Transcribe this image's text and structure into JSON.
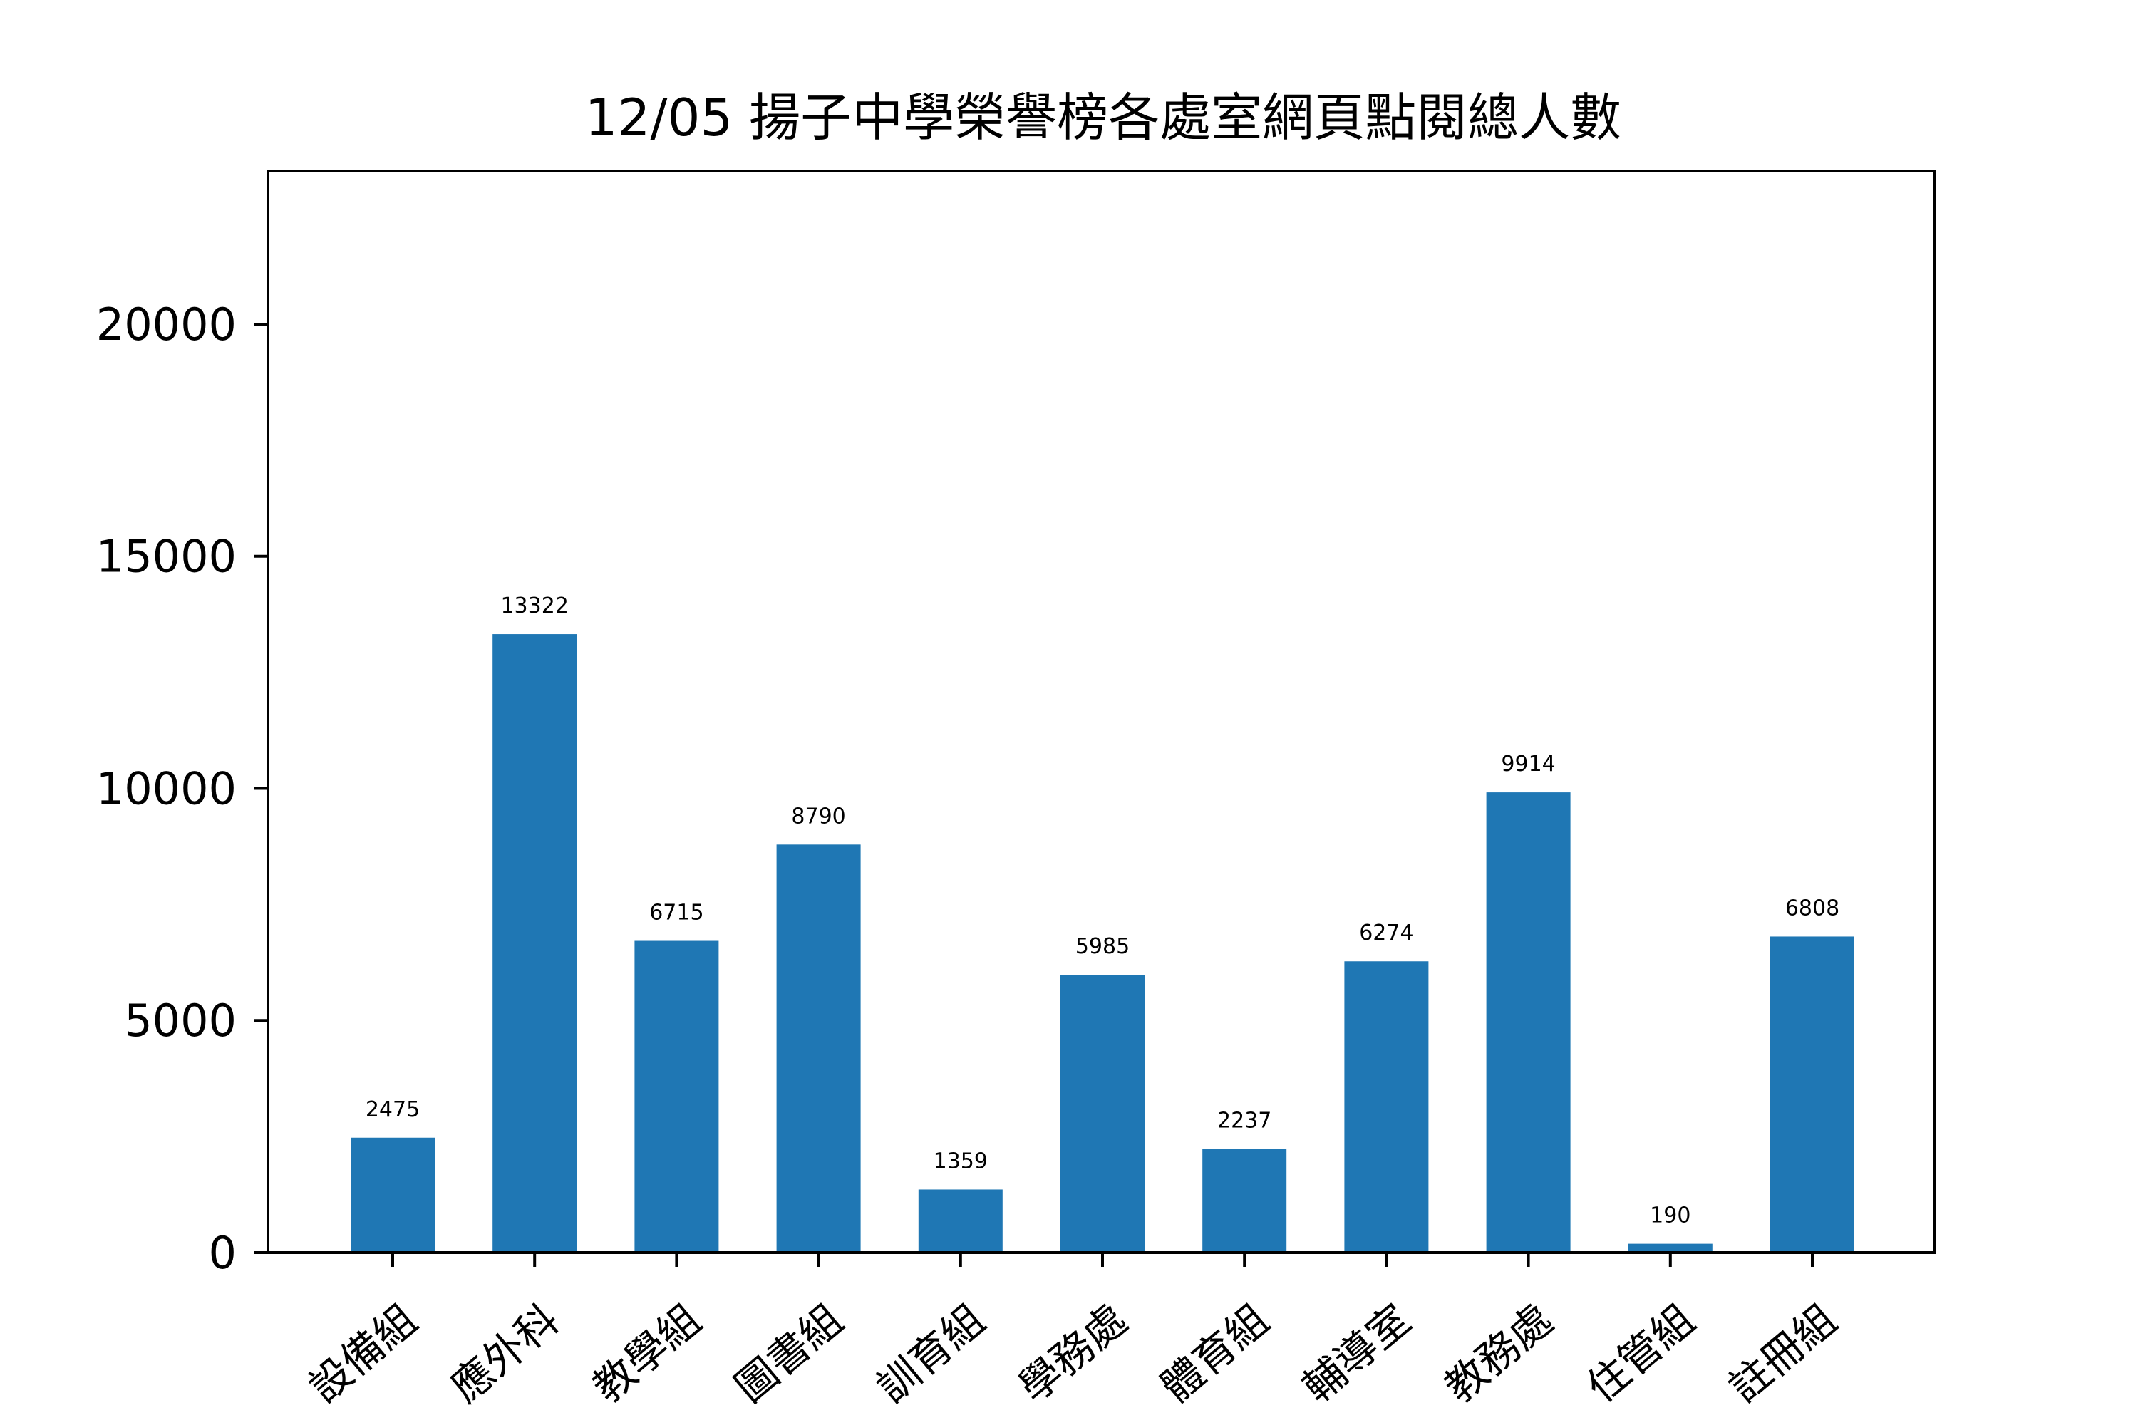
{
  "chart_data": {
    "type": "bar",
    "title": "12/05 揚子中學榮譽榜各處室網頁點閱總人數",
    "xlabel": "",
    "ylabel": "",
    "categories": [
      "設備組",
      "應外科",
      "教學組",
      "圖書組",
      "訓育組",
      "學務處",
      "體育組",
      "輔導室",
      "教務處",
      "住管組",
      "註冊組"
    ],
    "values": [
      2475,
      13322,
      6715,
      8790,
      1359,
      5985,
      2237,
      6274,
      9914,
      190,
      6808
    ],
    "ylim": [
      0,
      23300
    ],
    "yticks": [
      0,
      5000,
      10000,
      15000,
      20000
    ],
    "yticks_text": [
      "0",
      "5000",
      "10000",
      "15000",
      "20000"
    ],
    "bar_color": "#1f77b4",
    "grid": false,
    "legend": "none"
  }
}
